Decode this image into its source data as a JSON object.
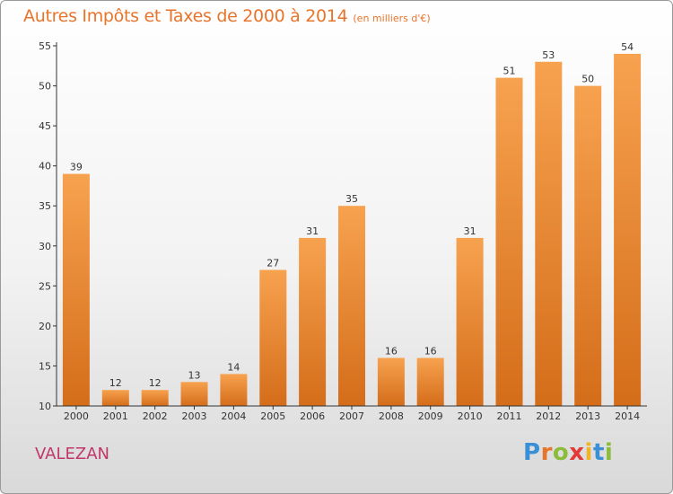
{
  "header": {
    "title": "Autres Impôts et Taxes de 2000 à 2014",
    "subtitle": "(en milliers d'€)"
  },
  "footer": {
    "commune": "VALEZAN",
    "logo_letters": [
      "P",
      "r",
      "o",
      "x",
      "i",
      "t",
      "i"
    ]
  },
  "colors": {
    "bar_top": "#f7a24f",
    "bar_bottom": "#d46d1a",
    "title": "#e8742a",
    "commune": "#c0386a"
  },
  "chart_data": {
    "type": "bar",
    "title": "Autres Impôts et Taxes de 2000 à 2014",
    "subtitle": "(en milliers d'€)",
    "xlabel": "",
    "ylabel": "",
    "ylim": [
      10,
      55
    ],
    "yticks": [
      10,
      15,
      20,
      25,
      30,
      35,
      40,
      45,
      50,
      55
    ],
    "grid": false,
    "categories": [
      "2000",
      "2001",
      "2002",
      "2003",
      "2004",
      "2005",
      "2006",
      "2007",
      "2008",
      "2009",
      "2010",
      "2011",
      "2012",
      "2013",
      "2014"
    ],
    "values": [
      39,
      12,
      12,
      13,
      14,
      27,
      31,
      35,
      16,
      16,
      31,
      51,
      53,
      50,
      54
    ]
  }
}
